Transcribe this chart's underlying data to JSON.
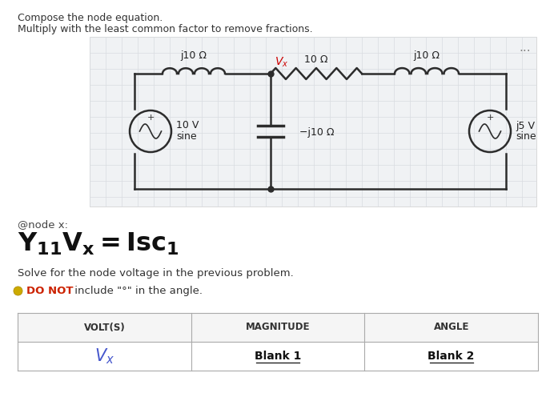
{
  "title_line1": "Compose the node equation.",
  "title_line2": "Multiply with the least common factor to remove fractions.",
  "node_eq_label": "@node x:",
  "solve_text": "Solve for the node voltage in the previous problem.",
  "do_not_text": "DO NOT",
  "do_not_suffix": " include \"°\" in the angle.",
  "table_headers": [
    "VOLT(S)",
    "MAGNITUDE",
    "ANGLE"
  ],
  "table_row": [
    "Vx",
    "Blank 1",
    "Blank 2"
  ],
  "bg_color": "#ffffff",
  "circuit_bg": "#f0f2f4",
  "grid_color": "#d8dce0",
  "circuit_line_color": "#2c2c2c",
  "vx_color": "#cc0000",
  "vx_table_color": "#4455cc",
  "do_not_color": "#cc2200",
  "lightbulb_color": "#ccaa00",
  "component_labels": {
    "left_inductor": "j10 Ω",
    "right_inductor": "j10 Ω",
    "resistor": "10 Ω",
    "capacitor": "−j10 Ω",
    "left_source": [
      "10 V",
      "sine"
    ],
    "right_source": [
      "j5 V",
      "sine"
    ]
  }
}
